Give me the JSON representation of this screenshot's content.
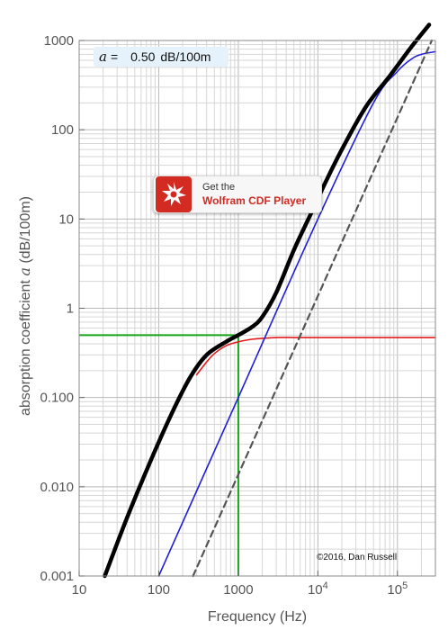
{
  "readout": {
    "symbol": "a",
    "equals": "=",
    "value": "0.50",
    "unit": "dB/100m"
  },
  "badge": {
    "line1": "Get the",
    "line2": "Wolfram CDF Player",
    "icon": "wolfram-spikey-icon"
  },
  "credit": "©2016, Dan Russell",
  "chart_data": {
    "type": "line",
    "title": "",
    "xlabel": "Frequency (Hz)",
    "ylabel_prefix": "absorption coefficient ",
    "ylabel_symbol": "a",
    "ylabel_suffix": " (dB/100m)",
    "x_scale": "log",
    "y_scale": "log",
    "xlim": [
      10,
      300000
    ],
    "ylim": [
      0.001,
      1000
    ],
    "grid": true,
    "x_ticks": [
      {
        "value": 10,
        "label": "10"
      },
      {
        "value": 100,
        "label": "100"
      },
      {
        "value": 1000,
        "label": "1000"
      },
      {
        "value": 10000,
        "base": "10",
        "exp": "4"
      },
      {
        "value": 100000,
        "base": "10",
        "exp": "5"
      }
    ],
    "y_ticks": [
      {
        "value": 0.001,
        "label": "0.001"
      },
      {
        "value": 0.01,
        "label": "0.010"
      },
      {
        "value": 0.1,
        "label": "0.100"
      },
      {
        "value": 1,
        "label": "1"
      },
      {
        "value": 10,
        "label": "10"
      },
      {
        "value": 100,
        "label": "100"
      },
      {
        "value": 1000,
        "label": "1000"
      }
    ],
    "series": [
      {
        "key": "total",
        "color": "#000000",
        "style": "solid-thick",
        "x": [
          21,
          40,
          80,
          150,
          250,
          400,
          700,
          1000,
          1500,
          2000,
          3000,
          5000,
          8000,
          12000,
          20000,
          40000,
          80000,
          150000,
          250000
        ],
        "y": [
          0.001,
          0.0045,
          0.02,
          0.07,
          0.17,
          0.3,
          0.42,
          0.5,
          0.62,
          0.8,
          1.5,
          4.5,
          11,
          24,
          60,
          180,
          400,
          850,
          1500
        ]
      },
      {
        "key": "relaxation",
        "color": "#e41a1c",
        "style": "solid",
        "x": [
          300,
          400,
          500,
          700,
          1000,
          1500,
          2000,
          3000,
          5000,
          10000,
          100000,
          300000
        ],
        "y": [
          0.18,
          0.25,
          0.31,
          0.38,
          0.42,
          0.45,
          0.46,
          0.47,
          0.47,
          0.47,
          0.47,
          0.47
        ]
      },
      {
        "key": "scattering",
        "color": "#1f1fd6",
        "style": "solid",
        "x": [
          100,
          1000,
          10000,
          50000,
          100000,
          150000,
          200000,
          300000
        ],
        "y": [
          0.001,
          0.1,
          10,
          200,
          450,
          620,
          700,
          750
        ]
      },
      {
        "key": "viscous",
        "color": "#555555",
        "style": "dashed",
        "x": [
          270,
          2700,
          27000,
          270000
        ],
        "y": [
          0.001,
          0.1,
          10,
          1000
        ]
      }
    ],
    "markers": {
      "frequency": 1000,
      "level": 0.5,
      "color": "#16a31a"
    }
  }
}
